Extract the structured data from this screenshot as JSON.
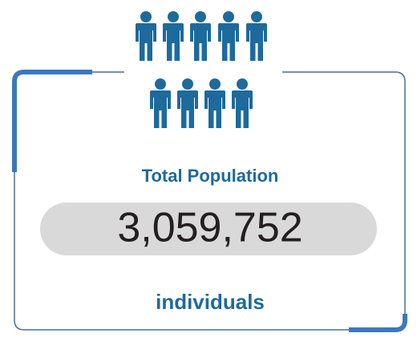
{
  "title": "Total Population",
  "value": "3,059,752",
  "unit": "individuals"
}
